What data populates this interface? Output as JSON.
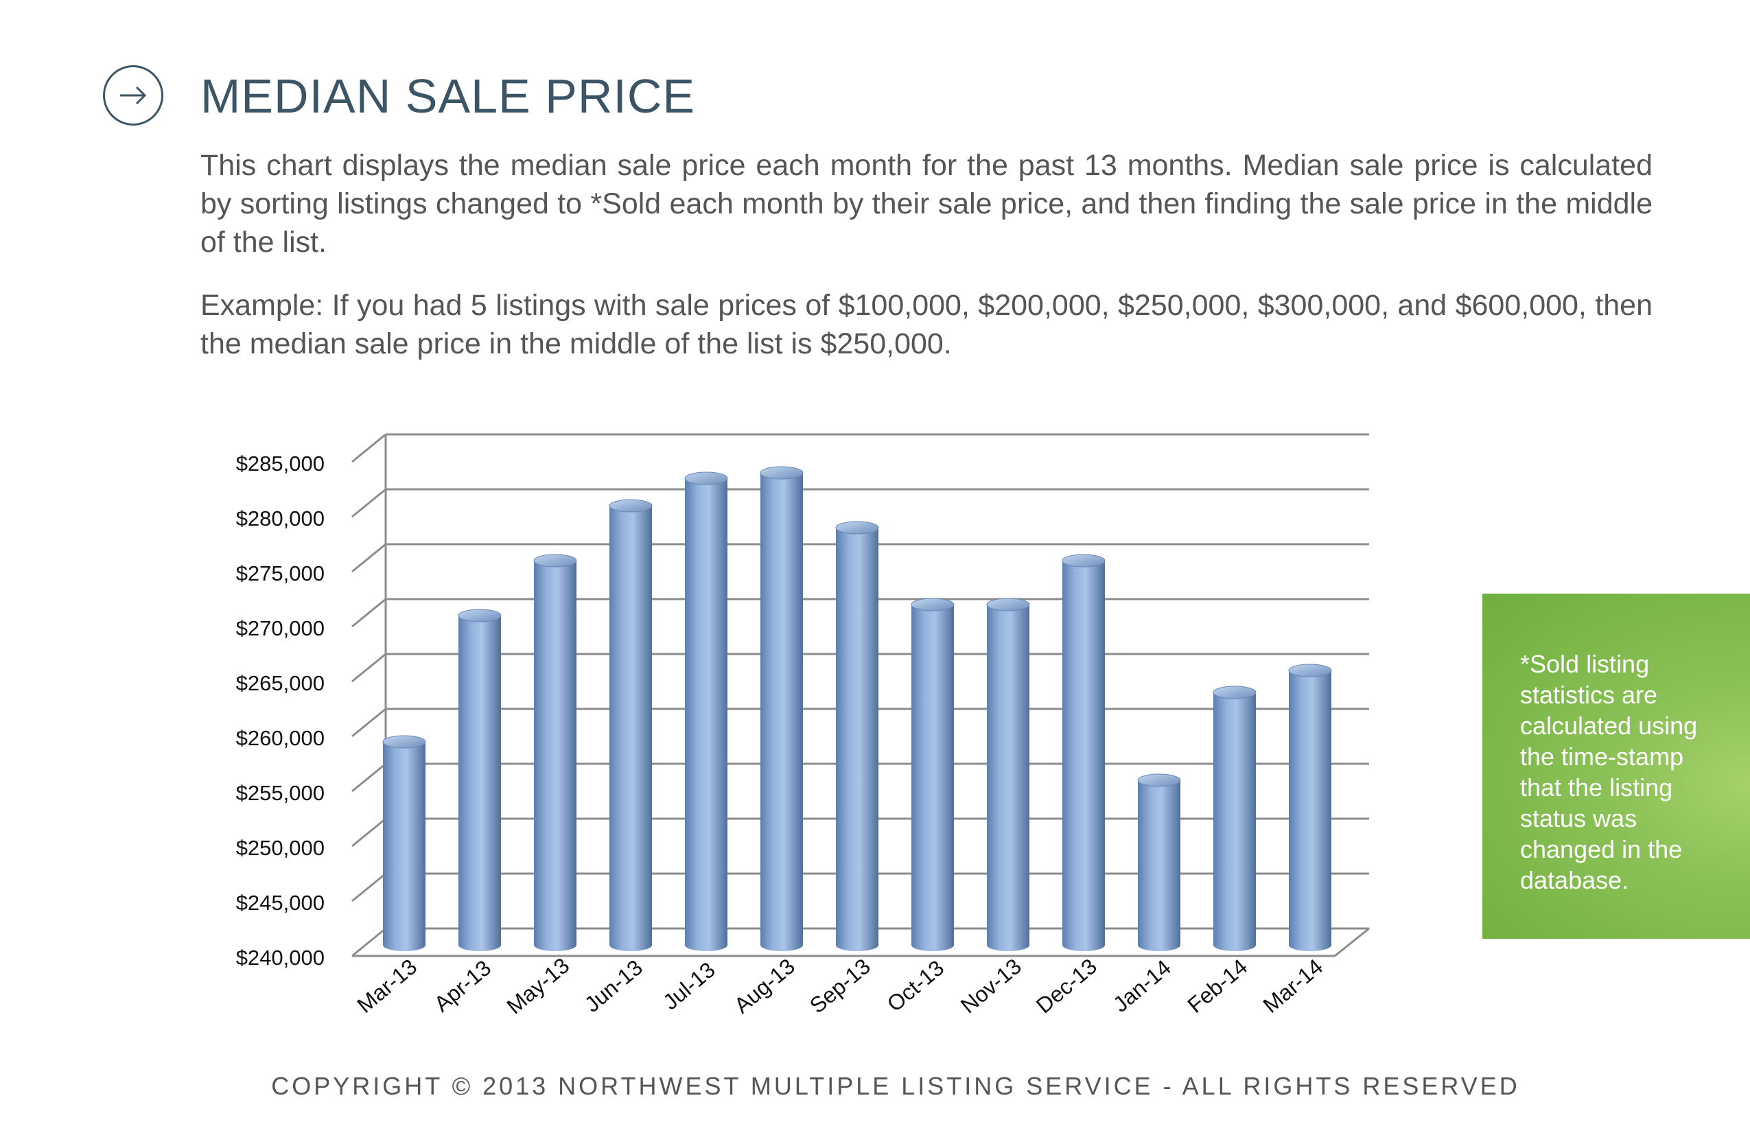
{
  "header": {
    "title": "MEDIAN SALE PRICE",
    "icon": "arrow-right-icon"
  },
  "description": {
    "paragraph_1": "This chart displays the median sale price each month for the past 13 months. Median sale price is calculated by sorting listings changed to *Sold each month by their sale price, and then finding the sale price in the middle of the list.",
    "paragraph_2": "Example: If you had 5 listings with sale prices of $100,000, $200,000, $250,000, $300,000, and $600,000, then the median sale price in the middle of the list is $250,000."
  },
  "sidebar_note": {
    "text": "*Sold listing statistics are calculated using the time-stamp that the listing status was changed in the database."
  },
  "footer": {
    "copyright": "COPYRIGHT © 2013 NORTHWEST MULTIPLE LISTING SERVICE - ALL RIGHTS RESERVED"
  },
  "colors": {
    "title": "#3b5566",
    "body_text": "#555555",
    "bar_light": "#a9c4e8",
    "bar_dark": "#5d7fae",
    "note_green": "#7ab648",
    "grid": "#8c8c8c"
  },
  "chart_data": {
    "type": "bar",
    "style": "3d-cylinder",
    "title": "",
    "xlabel": "",
    "ylabel": "",
    "categories": [
      "Mar-13",
      "Apr-13",
      "May-13",
      "Jun-13",
      "Jul-13",
      "Aug-13",
      "Sep-13",
      "Oct-13",
      "Nov-13",
      "Dec-13",
      "Jan-14",
      "Feb-14",
      "Mar-14"
    ],
    "values": [
      258500,
      270000,
      275000,
      280000,
      282500,
      283000,
      278000,
      271000,
      271000,
      275000,
      255000,
      263000,
      265000
    ],
    "ylim": [
      240000,
      285000
    ],
    "y_ticks": [
      240000,
      245000,
      250000,
      255000,
      260000,
      265000,
      270000,
      275000,
      280000,
      285000
    ],
    "y_tick_labels": [
      "$240,000",
      "$245,000",
      "$250,000",
      "$255,000",
      "$260,000",
      "$265,000",
      "$270,000",
      "$275,000",
      "$280,000",
      "$285,000"
    ],
    "grid": true,
    "legend": "none"
  }
}
